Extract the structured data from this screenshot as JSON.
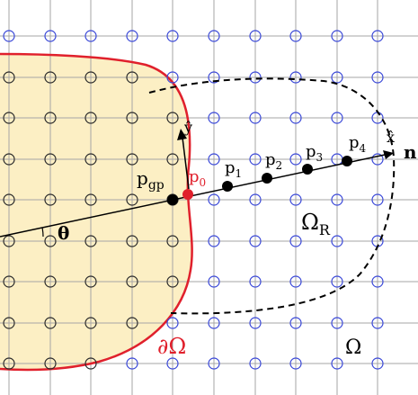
{
  "colors": {
    "grid_line": "#a6a6a6",
    "interior_fill": "#fcefc4",
    "boundary": "#e0202c",
    "outside_node": "#3a48d8",
    "inside_node": "#2b2b2b",
    "ray": "#000000",
    "text_red": "#e0202c",
    "text": "#000000"
  },
  "labels": {
    "p_gp_main": "p",
    "p_gp_sub": "gp",
    "p0_main": "p",
    "p0_sub": "0",
    "p1_main": "p",
    "p1_sub": "1",
    "p2_main": "p",
    "p2_sub": "2",
    "p3_main": "p",
    "p3_sub": "3",
    "p4_main": "p",
    "p4_sub": "4",
    "x_hat": "x̂",
    "y_hat": "ŷ",
    "n": "n",
    "theta": "θ",
    "omega_r_main": "Ω",
    "omega_r_sub": "R",
    "boundary": "∂Ω",
    "omega": "Ω"
  },
  "icons": {
    "ray_arrow": "arrow-right-icon",
    "normal_arrow": "arrow-up-icon"
  }
}
